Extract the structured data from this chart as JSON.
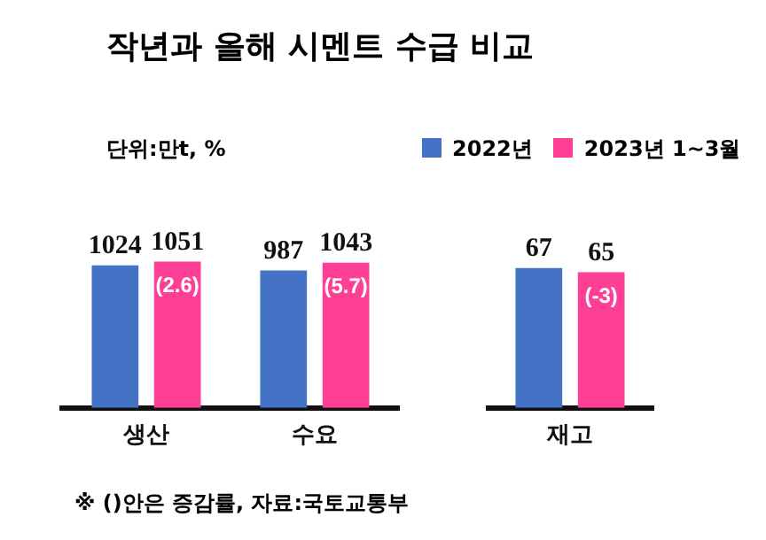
{
  "chart_data": [
    {
      "type": "bar",
      "title": "작년과 올해 시멘트 수급 비교",
      "subtitle": "단위:만t, %",
      "categories": [
        "생산",
        "수요"
      ],
      "series": [
        {
          "name": "2022년",
          "color": "#4472c4",
          "values": [
            1024,
            987
          ]
        },
        {
          "name": "2023년 1~3월",
          "color": "#ff3f96",
          "values": [
            1051,
            1043
          ]
        }
      ],
      "data_labels": true,
      "grid": false,
      "legend": "top right",
      "tick_labels": "x",
      "annotations": [
        "(2.6)",
        "(5.7)",
        "※ ()안은 증감률, 자료:국토교통부"
      ]
    },
    {
      "type": "bar",
      "categories": [
        "재고"
      ],
      "series": [
        {
          "color": "#4472c4",
          "values": [
            67
          ]
        },
        {
          "color": "#ff3f96",
          "values": [
            65
          ]
        }
      ],
      "data_labels": true,
      "grid": false,
      "tick_labels": "x",
      "annotations": [
        "(-3)"
      ]
    }
  ]
}
